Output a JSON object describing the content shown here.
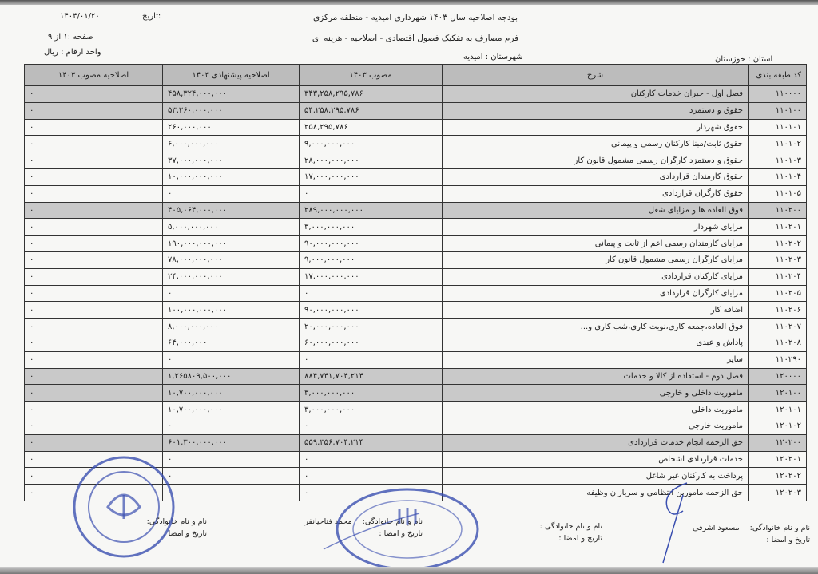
{
  "header": {
    "title_line1": "بودجه اصلاحیه سال ۱۴۰۳ شهرداری امیدیه - منطقه مرکزی",
    "title_line2": "فرم مصارف به تفکیک فصول اقتصادی - اصلاحیه - هزینه ای",
    "date_label": "تاریخ:",
    "date_value": "۱۴۰۴/۰۱/۲۰",
    "page": "صفحه :۱ از ۹",
    "unit": "واحد ارقام : ریال",
    "province": "استان : خوزستان",
    "county": "شهرستان : امیدیه"
  },
  "table": {
    "columns": [
      "کد طبقه بندی",
      "شرح",
      "مصوب ۱۴۰۳",
      "اصلاحیه پیشنهادی ۱۴۰۳",
      "اصلاحیه مصوب ۱۴۰۳"
    ],
    "rows": [
      {
        "code": "۱۱۰۰۰۰",
        "desc": "فصل اول - جبران خدمات کارکنان",
        "approved": "۳۴۳,۲۵۸,۲۹۵,۷۸۶",
        "proposed": "۴۵۸,۳۲۴,۰۰۰,۰۰۰",
        "final": "۰",
        "shaded": true
      },
      {
        "code": "۱۱۰۱۰۰",
        "desc": "حقوق و دستمزد",
        "approved": "۵۴,۲۵۸,۲۹۵,۷۸۶",
        "proposed": "۵۳,۲۶۰,۰۰۰,۰۰۰",
        "final": "۰",
        "shaded": true
      },
      {
        "code": "۱۱۰۱۰۱",
        "desc": "حقوق شهردار",
        "approved": "۲۵۸,۲۹۵,۷۸۶",
        "proposed": "۲۶۰,۰۰۰,۰۰۰",
        "final": "۰",
        "shaded": false
      },
      {
        "code": "۱۱۰۱۰۲",
        "desc": "حقوق ثابت/مبنا کارکنان رسمی و پیمانی",
        "approved": "۹,۰۰۰,۰۰۰,۰۰۰",
        "proposed": "۶,۰۰۰,۰۰۰,۰۰۰",
        "final": "۰",
        "shaded": false
      },
      {
        "code": "۱۱۰۱۰۳",
        "desc": "حقوق و دستمزد کارگران رسمی مشمول قانون کار",
        "approved": "۲۸,۰۰۰,۰۰۰,۰۰۰",
        "proposed": "۳۷,۰۰۰,۰۰۰,۰۰۰",
        "final": "۰",
        "shaded": false
      },
      {
        "code": "۱۱۰۱۰۴",
        "desc": "حقوق کارمندان قراردادی",
        "approved": "۱۷,۰۰۰,۰۰۰,۰۰۰",
        "proposed": "۱۰,۰۰۰,۰۰۰,۰۰۰",
        "final": "۰",
        "shaded": false
      },
      {
        "code": "۱۱۰۱۰۵",
        "desc": "حقوق کارگران قراردادی",
        "approved": "۰",
        "proposed": "۰",
        "final": "۰",
        "shaded": false
      },
      {
        "code": "۱۱۰۲۰۰",
        "desc": "فوق العاده ها و مزایای شغل",
        "approved": "۲۸۹,۰۰۰,۰۰۰,۰۰۰",
        "proposed": "۴۰۵,۰۶۴,۰۰۰,۰۰۰",
        "final": "۰",
        "shaded": true
      },
      {
        "code": "۱۱۰۲۰۱",
        "desc": "مزایای شهردار",
        "approved": "۳,۰۰۰,۰۰۰,۰۰۰",
        "proposed": "۵,۰۰۰,۰۰۰,۰۰۰",
        "final": "۰",
        "shaded": false
      },
      {
        "code": "۱۱۰۲۰۲",
        "desc": "مزایای کارمندان رسمی اعم از ثابت و پیمانی",
        "approved": "۹۰,۰۰۰,۰۰۰,۰۰۰",
        "proposed": "۱۹۰,۰۰۰,۰۰۰,۰۰۰",
        "final": "۰",
        "shaded": false
      },
      {
        "code": "۱۱۰۲۰۳",
        "desc": "مزایای کارگران رسمی مشمول قانون کار",
        "approved": "۹,۰۰۰,۰۰۰,۰۰۰",
        "proposed": "۷۸,۰۰۰,۰۰۰,۰۰۰",
        "final": "۰",
        "shaded": false
      },
      {
        "code": "۱۱۰۲۰۴",
        "desc": "مزایای کارکنان قراردادی",
        "approved": "۱۷,۰۰۰,۰۰۰,۰۰۰",
        "proposed": "۲۴,۰۰۰,۰۰۰,۰۰۰",
        "final": "۰",
        "shaded": false
      },
      {
        "code": "۱۱۰۲۰۵",
        "desc": "مزایای کارگران قراردادی",
        "approved": "۰",
        "proposed": "۰",
        "final": "۰",
        "shaded": false
      },
      {
        "code": "۱۱۰۲۰۶",
        "desc": "اضافه کار",
        "approved": "۹۰,۰۰۰,۰۰۰,۰۰۰",
        "proposed": "۱۰۰,۰۰۰,۰۰۰,۰۰۰",
        "final": "۰",
        "shaded": false
      },
      {
        "code": "۱۱۰۲۰۷",
        "desc": "فوق العاده،جمعه کاری،نوبت کاری،شب کاری و...",
        "approved": "۲۰,۰۰۰,۰۰۰,۰۰۰",
        "proposed": "۸,۰۰۰,۰۰۰,۰۰۰",
        "final": "۰",
        "shaded": false
      },
      {
        "code": "۱۱۰۲۰۸",
        "desc": "پاداش و عیدی",
        "approved": "۶۰,۰۰۰,۰۰۰,۰۰۰",
        "proposed": "۶۴,۰۰۰,۰۰۰",
        "final": "۰",
        "shaded": false
      },
      {
        "code": "۱۱۰۲۹۰",
        "desc": "سایر",
        "approved": "۰",
        "proposed": "۰",
        "final": "۰",
        "shaded": false
      },
      {
        "code": "۱۲۰۰۰۰",
        "desc": "فصل دوم - استفاده از کالا و خدمات",
        "approved": "۸۸۴,۷۴۱,۷۰۴,۲۱۴",
        "proposed": "۱,۲۶۵۸۰۹,۵۰۰,۰۰۰",
        "final": "۰",
        "shaded": true
      },
      {
        "code": "۱۲۰۱۰۰",
        "desc": "ماموریت داخلی و خارجی",
        "approved": "۳,۰۰۰,۰۰۰,۰۰۰",
        "proposed": "۱۰,۷۰۰,۰۰۰,۰۰۰",
        "final": "۰",
        "shaded": true
      },
      {
        "code": "۱۲۰۱۰۱",
        "desc": "ماموریت داخلی",
        "approved": "۳,۰۰۰,۰۰۰,۰۰۰",
        "proposed": "۱۰,۷۰۰,۰۰۰,۰۰۰",
        "final": "۰",
        "shaded": false
      },
      {
        "code": "۱۲۰۱۰۲",
        "desc": "ماموریت خارجی",
        "approved": "۰",
        "proposed": "۰",
        "final": "۰",
        "shaded": false
      },
      {
        "code": "۱۲۰۲۰۰",
        "desc": "حق الزحمه انجام خدمات قراردادی",
        "approved": "۵۵۹,۳۵۶,۷۰۴,۲۱۴",
        "proposed": "۶۰۱,۳۰۰,۰۰۰,۰۰۰",
        "final": "۰",
        "shaded": true
      },
      {
        "code": "۱۲۰۲۰۱",
        "desc": "خدمات قراردادی اشخاص",
        "approved": "۰",
        "proposed": "۰",
        "final": "۰",
        "shaded": false
      },
      {
        "code": "۱۲۰۲۰۲",
        "desc": "پرداخت به کارکنان غیر شاغل",
        "approved": "۰",
        "proposed": "۰",
        "final": "۰",
        "shaded": false
      },
      {
        "code": "۱۲۰۲۰۳",
        "desc": "حق الزحمه مامورین انتظامی و سربازان وظیفه",
        "approved": "۰",
        "proposed": "۰",
        "final": "۰",
        "shaded": false
      }
    ]
  },
  "signatures": [
    {
      "name_label": "نام و نام خانوادگی:",
      "name": "مسعود اشرفی",
      "date_label": "تاریخ و امضا :"
    },
    {
      "name_label": "نام و نام خانوادگی :",
      "name": "",
      "date_label": "تاریخ و امضا :"
    },
    {
      "name_label": "نام و نام خانوادگی:",
      "name": "محمد فتاحیانفر",
      "date_label": "تاریخ و امضا :"
    },
    {
      "name_label": "نام و نام خانوادگی:",
      "name": "",
      "date_label": "تاریخ و امضا :"
    }
  ],
  "stamps": {
    "left_text": "شورای اسلامی شهر امیدیه",
    "center_text": "جمهوری اسلامی ایران - وزارت کشور - استانداری خوزستان",
    "center_caption": "سامانه بودجه شهرداریهای کشور",
    "ink_color": "#3a4fb0"
  }
}
